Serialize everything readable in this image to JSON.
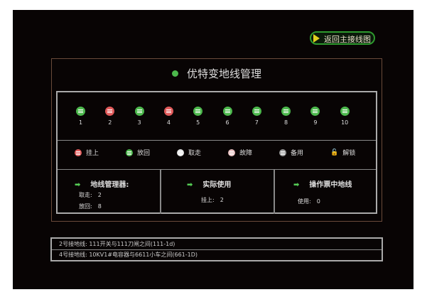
{
  "back_button": "返回主接线图",
  "title": "优特变地线管理",
  "colors": {
    "green": "#4cb84c",
    "red": "#e05a5a",
    "white": "#e8e8e8",
    "gray": "#999999",
    "accent": "#2e9a2e"
  },
  "grounds": [
    {
      "number": "1",
      "state": "green"
    },
    {
      "number": "2",
      "state": "red"
    },
    {
      "number": "3",
      "state": "green"
    },
    {
      "number": "4",
      "state": "red"
    },
    {
      "number": "5",
      "state": "green"
    },
    {
      "number": "6",
      "state": "green"
    },
    {
      "number": "7",
      "state": "green"
    },
    {
      "number": "8",
      "state": "green"
    },
    {
      "number": "9",
      "state": "green"
    },
    {
      "number": "10",
      "state": "green"
    }
  ],
  "legend": [
    {
      "label": "挂上",
      "icon": "ground-red-icon"
    },
    {
      "label": "放回",
      "icon": "ground-green-icon"
    },
    {
      "label": "取走",
      "icon": "ground-white-icon"
    },
    {
      "label": "故障",
      "icon": "fault-icon"
    },
    {
      "label": "备用",
      "icon": "ground-gray-icon"
    },
    {
      "label": "解锁",
      "icon": "unlock-icon"
    }
  ],
  "cards": {
    "manager": {
      "title": "地线管理器:",
      "taken_label": "取走:",
      "taken": "2",
      "returned_label": "放回:",
      "returned": "8"
    },
    "actual": {
      "title": "实际使用",
      "hung_label": "挂上:",
      "hung": "2"
    },
    "ticket": {
      "title": "操作票中地线",
      "used_label": "使用:",
      "used": "0"
    }
  },
  "footer": [
    "2号接地线: 111开关与111刀闸之间(111-1d)",
    "4号接地线: 10KV1#电容器与6611小车之间(661-1D)"
  ]
}
